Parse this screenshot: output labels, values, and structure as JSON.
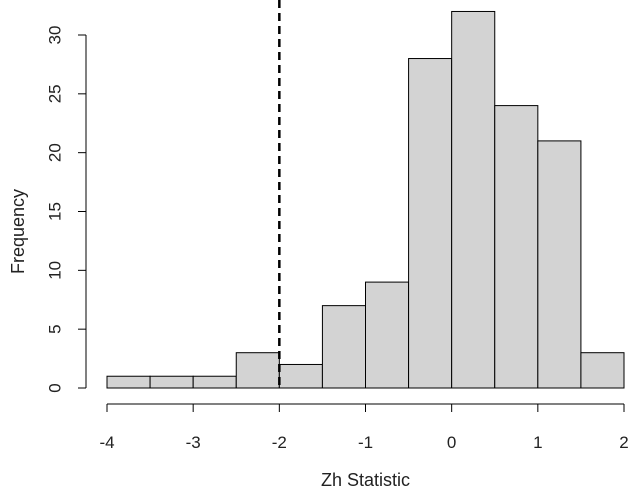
{
  "chart_data": {
    "type": "bar",
    "title": "",
    "xlabel": "Zh Statistic",
    "ylabel": "Frequency",
    "bins": [
      {
        "x0": -4.0,
        "x1": -3.5,
        "count": 1
      },
      {
        "x0": -3.5,
        "x1": -3.0,
        "count": 1
      },
      {
        "x0": -3.0,
        "x1": -2.5,
        "count": 1
      },
      {
        "x0": -2.5,
        "x1": -2.0,
        "count": 3
      },
      {
        "x0": -2.0,
        "x1": -1.5,
        "count": 2
      },
      {
        "x0": -1.5,
        "x1": -1.0,
        "count": 7
      },
      {
        "x0": -1.0,
        "x1": -0.5,
        "count": 9
      },
      {
        "x0": -0.5,
        "x1": 0.0,
        "count": 28
      },
      {
        "x0": 0.0,
        "x1": 0.5,
        "count": 32
      },
      {
        "x0": 0.5,
        "x1": 1.0,
        "count": 24
      },
      {
        "x0": 1.0,
        "x1": 1.5,
        "count": 21
      },
      {
        "x0": 1.5,
        "x1": 2.0,
        "count": 3
      }
    ],
    "xlim": [
      -4,
      2
    ],
    "ylim": [
      0,
      30
    ],
    "x_ticks": [
      -4,
      -3,
      -2,
      -1,
      0,
      1,
      2
    ],
    "x_tick_labels": [
      "-4",
      "-3",
      "-2",
      "-1",
      "0",
      "1",
      "2"
    ],
    "y_ticks": [
      0,
      5,
      10,
      15,
      20,
      25,
      30
    ],
    "y_tick_labels": [
      "0",
      "5",
      "10",
      "15",
      "20",
      "25",
      "30"
    ],
    "reference_line": {
      "x": -2,
      "style": "dashed",
      "color": "#000000"
    },
    "bar_fill": "#d3d3d3",
    "bar_stroke": "#000000",
    "grid": false
  }
}
